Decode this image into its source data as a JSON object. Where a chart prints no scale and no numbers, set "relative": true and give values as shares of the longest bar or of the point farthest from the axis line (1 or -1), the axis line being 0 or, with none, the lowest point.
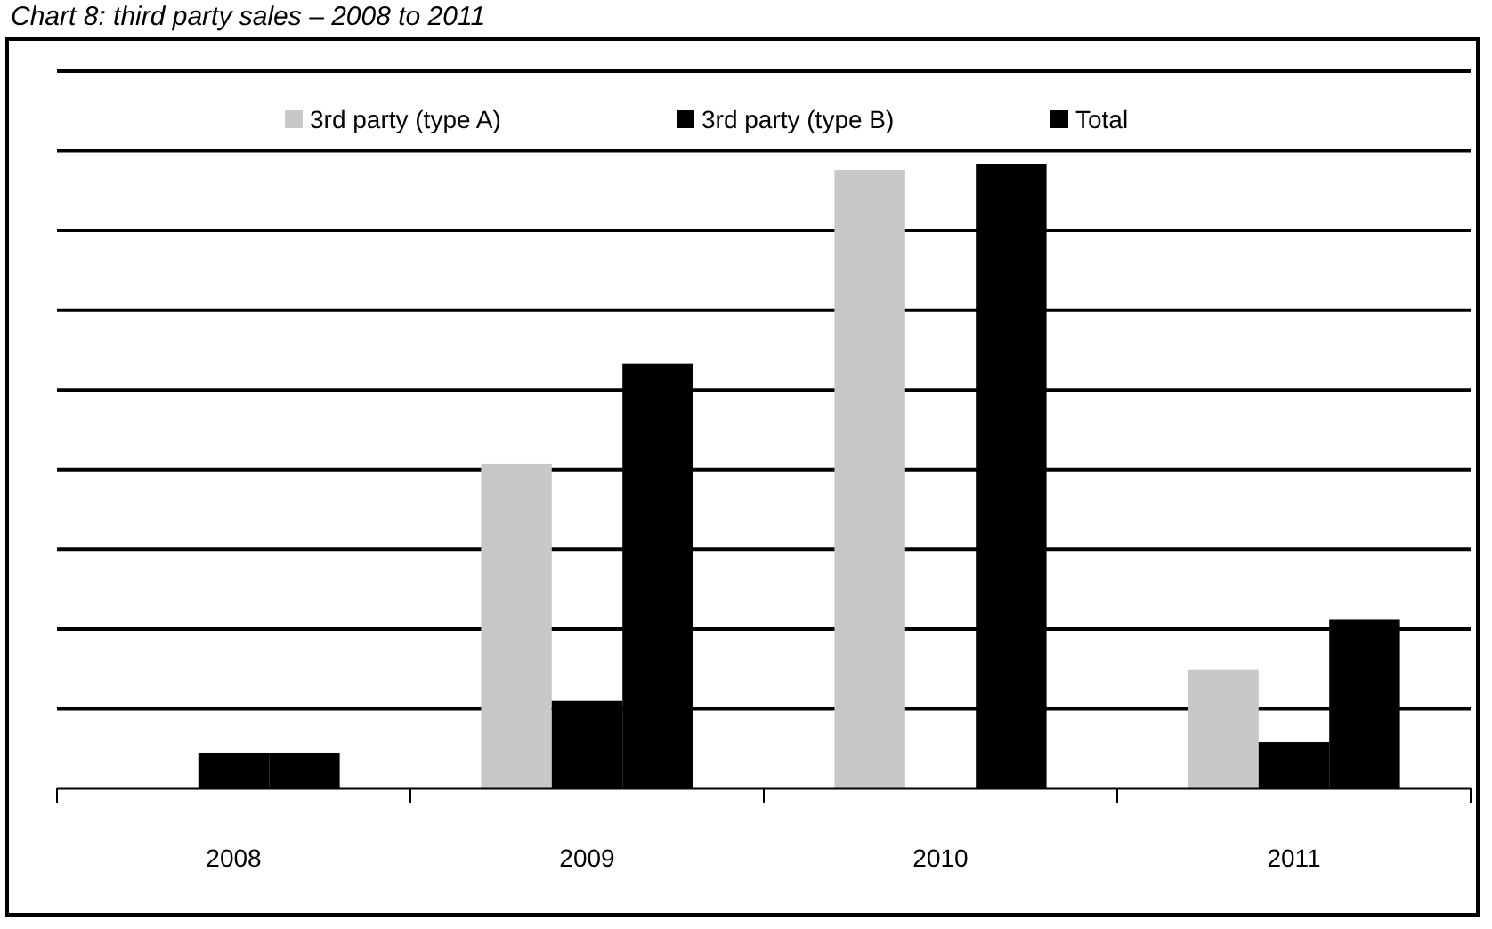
{
  "chart_data": {
    "type": "bar",
    "title": "Chart 8: third party sales – 2008 to 2011",
    "relative": true,
    "grid": true,
    "legend": "top",
    "categories": [
      "2008",
      "2009",
      "2010",
      "2011"
    ],
    "series": [
      {
        "name": "3rd party (type A)",
        "color": "#c8c8c8",
        "values": [
          0,
          0.52,
          0.99,
          0.19
        ]
      },
      {
        "name": "3rd party (type B)",
        "color": "#000000",
        "values": [
          0.057,
          0.14,
          0,
          0.074
        ]
      },
      {
        "name": "Total",
        "color": "#000000",
        "values": [
          0.057,
          0.68,
          1,
          0.27
        ]
      }
    ]
  }
}
